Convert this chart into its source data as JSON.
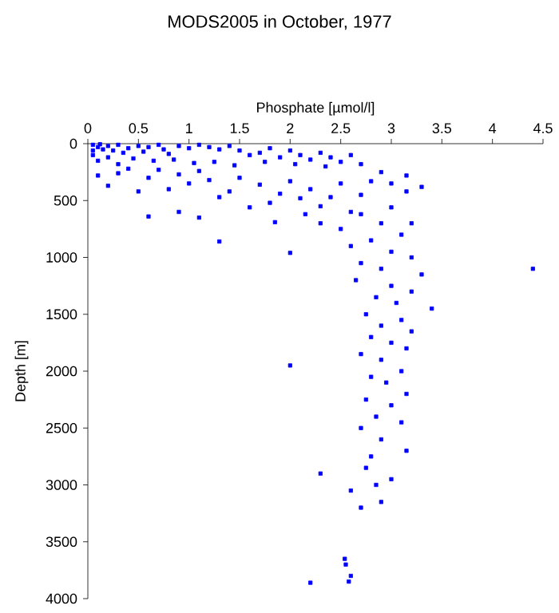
{
  "chart_data": {
    "type": "scatter",
    "title": "MODS2005 in October, 1977",
    "xlabel": "Phosphate [µmol/l]",
    "ylabel": "Depth [m]",
    "xlim": [
      0,
      4.5
    ],
    "xticks": [
      0,
      0.5,
      1,
      1.5,
      2,
      2.5,
      3,
      3.5,
      4,
      4.5
    ],
    "ylim": [
      4000,
      0
    ],
    "yticks": [
      0,
      500,
      1000,
      1500,
      2000,
      2500,
      3000,
      3500,
      4000
    ],
    "marker": "square",
    "color": "#0000ff",
    "x": [
      0.05,
      0.1,
      0.15,
      0.2,
      0.25,
      0.3,
      0.35,
      0.4,
      0.5,
      0.55,
      0.6,
      0.7,
      0.75,
      0.8,
      0.9,
      1.0,
      1.1,
      1.2,
      1.3,
      1.4,
      1.5,
      1.6,
      1.7,
      1.8,
      1.9,
      2.0,
      2.1,
      2.2,
      2.3,
      2.4,
      2.5,
      2.6,
      2.7,
      0.05,
      0.1,
      0.2,
      0.3,
      0.05,
      0.12,
      0.45,
      0.65,
      0.85,
      1.05,
      1.25,
      1.45,
      1.75,
      2.05,
      2.35,
      0.1,
      0.2,
      0.3,
      0.4,
      0.5,
      0.6,
      0.7,
      0.8,
      0.9,
      1.0,
      1.1,
      1.2,
      1.3,
      1.4,
      1.5,
      1.7,
      1.8,
      1.9,
      2.0,
      2.1,
      2.2,
      2.3,
      2.4,
      2.5,
      2.6,
      2.7,
      2.8,
      2.9,
      3.0,
      3.15,
      3.15,
      3.3,
      0.9,
      0.6,
      1.1,
      1.6,
      1.85,
      2.0,
      1.3,
      2.15,
      2.3,
      2.5,
      2.7,
      2.9,
      3.0,
      3.2,
      3.1,
      2.6,
      2.8,
      3.0,
      3.2,
      2.7,
      2.9,
      3.3,
      4.4,
      2.65,
      3.0,
      3.2,
      2.85,
      3.05,
      3.4,
      2.75,
      3.1,
      2.9,
      3.2,
      2.8,
      3.0,
      3.15,
      2.7,
      2.9,
      2.0,
      3.1,
      2.8,
      2.95,
      3.15,
      2.75,
      3.0,
      2.85,
      3.1,
      2.7,
      2.9,
      3.15,
      2.8,
      2.75,
      2.3,
      3.0,
      2.85,
      2.6,
      2.9,
      2.7,
      2.55,
      2.6,
      2.58,
      2.2,
      2.54
    ],
    "values": [
      10,
      30,
      50,
      20,
      60,
      10,
      80,
      40,
      20,
      70,
      30,
      10,
      50,
      90,
      20,
      40,
      10,
      30,
      50,
      20,
      60,
      100,
      80,
      40,
      120,
      60,
      100,
      140,
      80,
      120,
      160,
      100,
      180,
      100,
      150,
      120,
      180,
      60,
      5,
      130,
      150,
      140,
      170,
      160,
      190,
      160,
      180,
      200,
      280,
      370,
      260,
      220,
      420,
      300,
      230,
      400,
      270,
      350,
      240,
      320,
      470,
      420,
      300,
      360,
      520,
      440,
      330,
      480,
      400,
      550,
      470,
      350,
      600,
      450,
      330,
      250,
      350,
      280,
      420,
      380,
      600,
      640,
      650,
      560,
      690,
      960,
      860,
      620,
      700,
      750,
      620,
      700,
      560,
      700,
      800,
      900,
      850,
      950,
      1000,
      1050,
      1100,
      1150,
      1100,
      1200,
      1250,
      1300,
      1350,
      1400,
      1450,
      1500,
      1550,
      1600,
      1650,
      1700,
      1750,
      1800,
      1850,
      1900,
      1950,
      2000,
      2050,
      2100,
      2200,
      2250,
      2300,
      2400,
      2450,
      2500,
      2600,
      2700,
      2750,
      2850,
      2900,
      2950,
      3000,
      3050,
      3150,
      3200,
      3700,
      3800,
      3850,
      3860,
      3650
    ]
  }
}
